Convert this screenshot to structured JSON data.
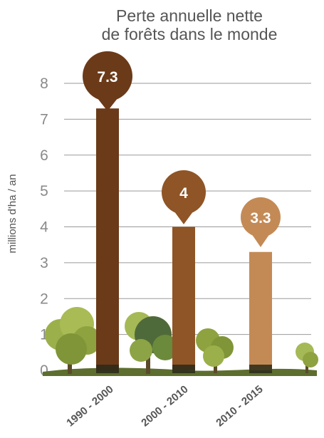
{
  "chart_data": {
    "type": "bar",
    "title_lines": [
      "Perte annuelle nette",
      "de forêts dans le monde"
    ],
    "ylabel": "millions d'ha / an",
    "xlabel": "",
    "ylim": [
      0,
      8
    ],
    "yticks": [
      0,
      1,
      2,
      3,
      4,
      5,
      6,
      7,
      8
    ],
    "categories": [
      "1990 - 2000",
      "2000 - 2010",
      "2010 - 2015"
    ],
    "values": [
      7.3,
      4,
      3.3
    ],
    "value_labels": [
      "7.3",
      "4",
      "3.3"
    ],
    "colors": [
      "#6b3a19",
      "#8f5526",
      "#c48a55"
    ],
    "grid": true,
    "legend": "none"
  }
}
